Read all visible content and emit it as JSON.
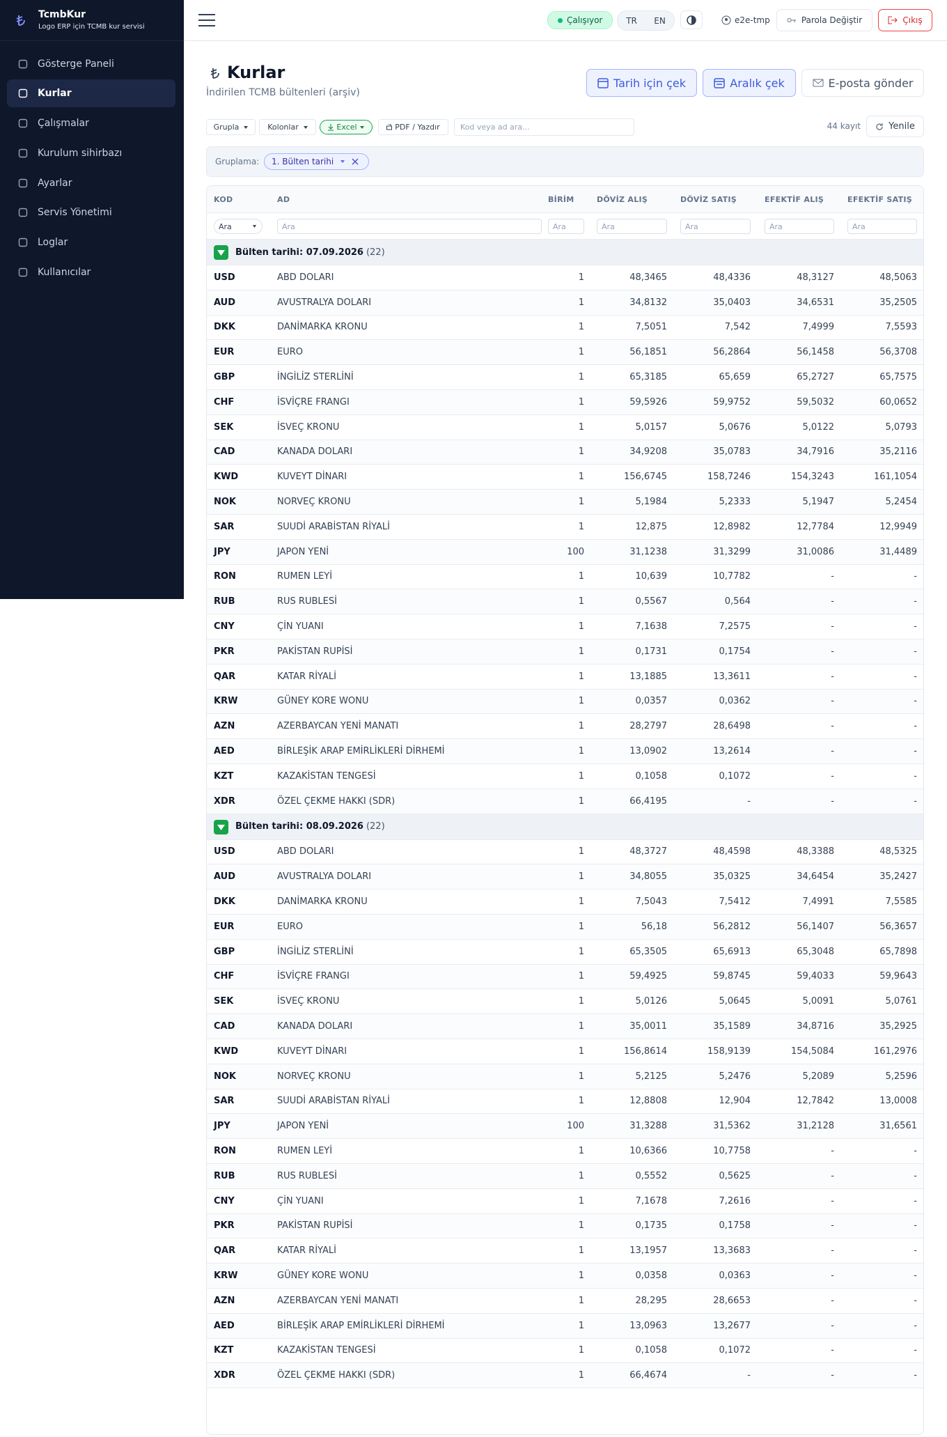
{
  "sidebar": {
    "brand": "TcmbKur",
    "tagline": "Logo ERP için TCMB kur servisi",
    "nav": [
      "Gösterge Paneli",
      "Kurlar",
      "Çalışmalar",
      "Kurulum sihirbazı",
      "Ayarlar",
      "Servis Yönetimi",
      "Loglar",
      "Kullanıcılar"
    ]
  },
  "topbar": {
    "status": "Çalışıyor",
    "languages": [
      "TR",
      "EN"
    ],
    "user": "e2e-tmp",
    "change_password": "Parola Değiştir",
    "logout": "Çıkış"
  },
  "header": {
    "title": "Kurlar",
    "subtitle": "İndirilen TCMB bültenleri (arşiv)",
    "actions": [
      "Tarih için çek",
      "Aralık çek",
      "E-posta gönder"
    ]
  },
  "toolbar": {
    "group": "Grupla",
    "columns": "Kolonlar",
    "excel": "Excel",
    "pdf": "PDF / Yazdır",
    "search_placeholder": "Kod veya ad ara...",
    "count": "44 kayıt",
    "refresh": "Yenile"
  },
  "grouping": {
    "label": "Gruplama:",
    "chip": "1. Bülten tarihi"
  },
  "table": {
    "headers": [
      "KOD",
      "AD",
      "BİRİM",
      "DÖVİZ ALIŞ",
      "DÖVİZ SATIŞ",
      "EFEKTİF ALIŞ",
      "EFEKTİF SATIŞ"
    ],
    "filters": [
      "Ara",
      "Ara",
      "Ara",
      "Ara",
      "Ara",
      "Ara",
      "Ara"
    ],
    "groups": [
      {
        "title": "Bülten tarihi: 07.09.2026",
        "count": "(22)",
        "rows": [
          [
            "USD",
            "ABD DOLARI",
            "1",
            "48,3465",
            "48,4336",
            "48,3127",
            "48,5063"
          ],
          [
            "AUD",
            "AVUSTRALYA DOLARI",
            "1",
            "34,8132",
            "35,0403",
            "34,6531",
            "35,2505"
          ],
          [
            "DKK",
            "DANİMARKA KRONU",
            "1",
            "7,5051",
            "7,542",
            "7,4999",
            "7,5593"
          ],
          [
            "EUR",
            "EURO",
            "1",
            "56,1851",
            "56,2864",
            "56,1458",
            "56,3708"
          ],
          [
            "GBP",
            "İNGİLİZ STERLİNİ",
            "1",
            "65,3185",
            "65,659",
            "65,2727",
            "65,7575"
          ],
          [
            "CHF",
            "İSVİÇRE FRANGI",
            "1",
            "59,5926",
            "59,9752",
            "59,5032",
            "60,0652"
          ],
          [
            "SEK",
            "İSVEÇ KRONU",
            "1",
            "5,0157",
            "5,0676",
            "5,0122",
            "5,0793"
          ],
          [
            "CAD",
            "KANADA DOLARI",
            "1",
            "34,9208",
            "35,0783",
            "34,7916",
            "35,2116"
          ],
          [
            "KWD",
            "KUVEYT DİNARI",
            "1",
            "156,6745",
            "158,7246",
            "154,3243",
            "161,1054"
          ],
          [
            "NOK",
            "NORVEÇ KRONU",
            "1",
            "5,1984",
            "5,2333",
            "5,1947",
            "5,2454"
          ],
          [
            "SAR",
            "SUUDİ ARABİSTAN RİYALİ",
            "1",
            "12,875",
            "12,8982",
            "12,7784",
            "12,9949"
          ],
          [
            "JPY",
            "JAPON YENİ",
            "100",
            "31,1238",
            "31,3299",
            "31,0086",
            "31,4489"
          ],
          [
            "RON",
            "RUMEN LEYİ",
            "1",
            "10,639",
            "10,7782",
            "-",
            "-"
          ],
          [
            "RUB",
            "RUS RUBLESİ",
            "1",
            "0,5567",
            "0,564",
            "-",
            "-"
          ],
          [
            "CNY",
            "ÇİN YUANI",
            "1",
            "7,1638",
            "7,2575",
            "-",
            "-"
          ],
          [
            "PKR",
            "PAKİSTAN RUPİSİ",
            "1",
            "0,1731",
            "0,1754",
            "-",
            "-"
          ],
          [
            "QAR",
            "KATAR RİYALİ",
            "1",
            "13,1885",
            "13,3611",
            "-",
            "-"
          ],
          [
            "KRW",
            "GÜNEY KORE WONU",
            "1",
            "0,0357",
            "0,0362",
            "-",
            "-"
          ],
          [
            "AZN",
            "AZERBAYCAN YENİ MANATI",
            "1",
            "28,2797",
            "28,6498",
            "-",
            "-"
          ],
          [
            "AED",
            "BİRLEŞİK ARAP EMİRLİKLERİ DİRHEMİ",
            "1",
            "13,0902",
            "13,2614",
            "-",
            "-"
          ],
          [
            "KZT",
            "KAZAKİSTAN TENGESİ",
            "1",
            "0,1058",
            "0,1072",
            "-",
            "-"
          ],
          [
            "XDR",
            "ÖZEL ÇEKME HAKKI (SDR)",
            "1",
            "66,4195",
            "-",
            "-",
            "-"
          ]
        ]
      },
      {
        "title": "Bülten tarihi: 08.09.2026",
        "count": "(22)",
        "rows": [
          [
            "USD",
            "ABD DOLARI",
            "1",
            "48,3727",
            "48,4598",
            "48,3388",
            "48,5325"
          ],
          [
            "AUD",
            "AVUSTRALYA DOLARI",
            "1",
            "34,8055",
            "35,0325",
            "34,6454",
            "35,2427"
          ],
          [
            "DKK",
            "DANİMARKA KRONU",
            "1",
            "7,5043",
            "7,5412",
            "7,4991",
            "7,5585"
          ],
          [
            "EUR",
            "EURO",
            "1",
            "56,18",
            "56,2812",
            "56,1407",
            "56,3657"
          ],
          [
            "GBP",
            "İNGİLİZ STERLİNİ",
            "1",
            "65,3505",
            "65,6913",
            "65,3048",
            "65,7898"
          ],
          [
            "CHF",
            "İSVİÇRE FRANGI",
            "1",
            "59,4925",
            "59,8745",
            "59,4033",
            "59,9643"
          ],
          [
            "SEK",
            "İSVEÇ KRONU",
            "1",
            "5,0126",
            "5,0645",
            "5,0091",
            "5,0761"
          ],
          [
            "CAD",
            "KANADA DOLARI",
            "1",
            "35,0011",
            "35,1589",
            "34,8716",
            "35,2925"
          ],
          [
            "KWD",
            "KUVEYT DİNARI",
            "1",
            "156,8614",
            "158,9139",
            "154,5084",
            "161,2976"
          ],
          [
            "NOK",
            "NORVEÇ KRONU",
            "1",
            "5,2125",
            "5,2476",
            "5,2089",
            "5,2596"
          ],
          [
            "SAR",
            "SUUDİ ARABİSTAN RİYALİ",
            "1",
            "12,8808",
            "12,904",
            "12,7842",
            "13,0008"
          ],
          [
            "JPY",
            "JAPON YENİ",
            "100",
            "31,3288",
            "31,5362",
            "31,2128",
            "31,6561"
          ],
          [
            "RON",
            "RUMEN LEYİ",
            "1",
            "10,6366",
            "10,7758",
            "-",
            "-"
          ],
          [
            "RUB",
            "RUS RUBLESİ",
            "1",
            "0,5552",
            "0,5625",
            "-",
            "-"
          ],
          [
            "CNY",
            "ÇİN YUANI",
            "1",
            "7,1678",
            "7,2616",
            "-",
            "-"
          ],
          [
            "PKR",
            "PAKİSTAN RUPİSİ",
            "1",
            "0,1735",
            "0,1758",
            "-",
            "-"
          ],
          [
            "QAR",
            "KATAR RİYALİ",
            "1",
            "13,1957",
            "13,3683",
            "-",
            "-"
          ],
          [
            "KRW",
            "GÜNEY KORE WONU",
            "1",
            "0,0358",
            "0,0363",
            "-",
            "-"
          ],
          [
            "AZN",
            "AZERBAYCAN YENİ MANATI",
            "1",
            "28,295",
            "28,6653",
            "-",
            "-"
          ],
          [
            "AED",
            "BİRLEŞİK ARAP EMİRLİKLERİ DİRHEMİ",
            "1",
            "13,0963",
            "13,2677",
            "-",
            "-"
          ],
          [
            "KZT",
            "KAZAKİSTAN TENGESİ",
            "1",
            "0,1058",
            "0,1072",
            "-",
            "-"
          ],
          [
            "XDR",
            "ÖZEL ÇEKME HAKKI (SDR)",
            "1",
            "66,4674",
            "-",
            "-",
            "-"
          ]
        ]
      }
    ]
  }
}
